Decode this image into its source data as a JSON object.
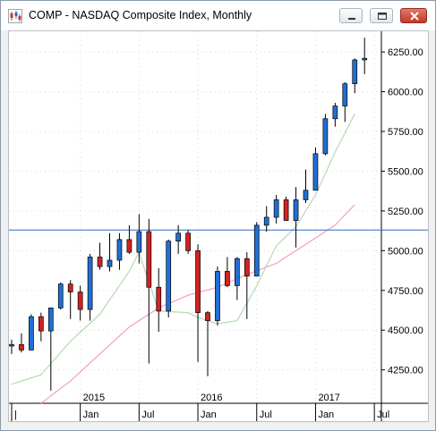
{
  "window": {
    "title": "COMP - NASDAQ Composite Index, Monthly",
    "buttons": {
      "minimize": "minimize",
      "maximize": "maximize",
      "close": "close"
    }
  },
  "colors": {
    "up": "#1f6fd6",
    "down": "#d42121",
    "sma_fast": "#b9dcb9",
    "sma_slow": "#f4a6c6",
    "hline": "#2d6fbf",
    "grid": "#d9d9d9"
  },
  "chart_data": {
    "type": "candlestick",
    "title": "COMP - NASDAQ Composite Index, Monthly",
    "y_ticks": [
      "4250.00",
      "4500.00",
      "4750.00",
      "5000.00",
      "5250.00",
      "5500.00",
      "5750.00",
      "6000.00",
      "6250.00"
    ],
    "ylim": [
      4040,
      6380
    ],
    "x_tick_labels": [
      "|",
      "Jan",
      "Jul",
      "Jan",
      "Jul",
      "Jan",
      "Jul"
    ],
    "year_labels": [
      "2015",
      "2016",
      "2017"
    ],
    "horizontal_line": 5130,
    "grid": "dotted",
    "candles": [
      {
        "date": "2014-06",
        "open": 4400,
        "high": 4440,
        "low": 4350,
        "close": 4410
      },
      {
        "date": "2014-07",
        "open": 4410,
        "high": 4480,
        "low": 4360,
        "close": 4375
      },
      {
        "date": "2014-08",
        "open": 4375,
        "high": 4600,
        "low": 4375,
        "close": 4585
      },
      {
        "date": "2014-09",
        "open": 4585,
        "high": 4610,
        "low": 4430,
        "close": 4495
      },
      {
        "date": "2014-10",
        "open": 4495,
        "high": 4640,
        "low": 4120,
        "close": 4640
      },
      {
        "date": "2014-11",
        "open": 4640,
        "high": 4800,
        "low": 4630,
        "close": 4790
      },
      {
        "date": "2014-12",
        "open": 4790,
        "high": 4815,
        "low": 4570,
        "close": 4740
      },
      {
        "date": "2015-01",
        "open": 4740,
        "high": 4780,
        "low": 4560,
        "close": 4630
      },
      {
        "date": "2015-02",
        "open": 4630,
        "high": 4980,
        "low": 4560,
        "close": 4960
      },
      {
        "date": "2015-03",
        "open": 4960,
        "high": 5050,
        "low": 4880,
        "close": 4900
      },
      {
        "date": "2015-04",
        "open": 4900,
        "high": 5110,
        "low": 4870,
        "close": 4940
      },
      {
        "date": "2015-05",
        "open": 4940,
        "high": 5110,
        "low": 4880,
        "close": 5070
      },
      {
        "date": "2015-06",
        "open": 5070,
        "high": 5160,
        "low": 4980,
        "close": 4990
      },
      {
        "date": "2015-07",
        "open": 4990,
        "high": 5230,
        "low": 4920,
        "close": 5120
      },
      {
        "date": "2015-08",
        "open": 5120,
        "high": 5200,
        "low": 4290,
        "close": 4770
      },
      {
        "date": "2015-09",
        "open": 4770,
        "high": 4890,
        "low": 4490,
        "close": 4620
      },
      {
        "date": "2015-10",
        "open": 4620,
        "high": 5070,
        "low": 4580,
        "close": 5060
      },
      {
        "date": "2015-11",
        "open": 5060,
        "high": 5160,
        "low": 4980,
        "close": 5110
      },
      {
        "date": "2015-12",
        "open": 5110,
        "high": 5130,
        "low": 4980,
        "close": 5000
      },
      {
        "date": "2016-01",
        "open": 5000,
        "high": 5040,
        "low": 4300,
        "close": 4610
      },
      {
        "date": "2016-02",
        "open": 4610,
        "high": 4620,
        "low": 4210,
        "close": 4560
      },
      {
        "date": "2016-03",
        "open": 4560,
        "high": 4900,
        "low": 4530,
        "close": 4870
      },
      {
        "date": "2016-04",
        "open": 4870,
        "high": 4960,
        "low": 4770,
        "close": 4780
      },
      {
        "date": "2016-05",
        "open": 4780,
        "high": 4960,
        "low": 4690,
        "close": 4950
      },
      {
        "date": "2016-06",
        "open": 4950,
        "high": 4990,
        "low": 4570,
        "close": 4840
      },
      {
        "date": "2016-07",
        "open": 4840,
        "high": 5180,
        "low": 4840,
        "close": 5160
      },
      {
        "date": "2016-08",
        "open": 5160,
        "high": 5280,
        "low": 5120,
        "close": 5210
      },
      {
        "date": "2016-09",
        "open": 5210,
        "high": 5350,
        "low": 5170,
        "close": 5320
      },
      {
        "date": "2016-10",
        "open": 5320,
        "high": 5340,
        "low": 5190,
        "close": 5190
      },
      {
        "date": "2016-11",
        "open": 5190,
        "high": 5400,
        "low": 5020,
        "close": 5320
      },
      {
        "date": "2016-12",
        "open": 5320,
        "high": 5510,
        "low": 5300,
        "close": 5380
      },
      {
        "date": "2017-01",
        "open": 5380,
        "high": 5650,
        "low": 5380,
        "close": 5610
      },
      {
        "date": "2017-02",
        "open": 5610,
        "high": 5860,
        "low": 5600,
        "close": 5830
      },
      {
        "date": "2017-03",
        "open": 5830,
        "high": 5930,
        "low": 5780,
        "close": 5910
      },
      {
        "date": "2017-04",
        "open": 5910,
        "high": 6060,
        "low": 5810,
        "close": 6050
      },
      {
        "date": "2017-05",
        "open": 6050,
        "high": 6210,
        "low": 5990,
        "close": 6200
      },
      {
        "date": "2017-06",
        "open": 6200,
        "high": 6340,
        "low": 6110,
        "close": 6210
      }
    ],
    "sma_fast": [
      {
        "date": "2014-06",
        "value": 4160
      },
      {
        "date": "2014-09",
        "value": 4220
      },
      {
        "date": "2014-12",
        "value": 4430
      },
      {
        "date": "2015-03",
        "value": 4600
      },
      {
        "date": "2015-06",
        "value": 4870
      },
      {
        "date": "2015-07",
        "value": 4990
      },
      {
        "date": "2015-08",
        "value": 4800
      },
      {
        "date": "2015-09",
        "value": 4620
      },
      {
        "date": "2015-12",
        "value": 4610
      },
      {
        "date": "2016-01",
        "value": 4580
      },
      {
        "date": "2016-03",
        "value": 4540
      },
      {
        "date": "2016-05",
        "value": 4560
      },
      {
        "date": "2016-07",
        "value": 4780
      },
      {
        "date": "2016-09",
        "value": 5030
      },
      {
        "date": "2016-11",
        "value": 5150
      },
      {
        "date": "2017-01",
        "value": 5350
      },
      {
        "date": "2017-03",
        "value": 5620
      },
      {
        "date": "2017-05",
        "value": 5860
      }
    ],
    "sma_slow": [
      {
        "date": "2014-09",
        "value": 4040
      },
      {
        "date": "2014-12",
        "value": 4180
      },
      {
        "date": "2015-03",
        "value": 4350
      },
      {
        "date": "2015-06",
        "value": 4520
      },
      {
        "date": "2015-09",
        "value": 4640
      },
      {
        "date": "2015-12",
        "value": 4720
      },
      {
        "date": "2016-03",
        "value": 4770
      },
      {
        "date": "2016-06",
        "value": 4850
      },
      {
        "date": "2016-09",
        "value": 4920
      },
      {
        "date": "2016-12",
        "value": 5040
      },
      {
        "date": "2017-03",
        "value": 5160
      },
      {
        "date": "2017-05",
        "value": 5290
      }
    ]
  }
}
